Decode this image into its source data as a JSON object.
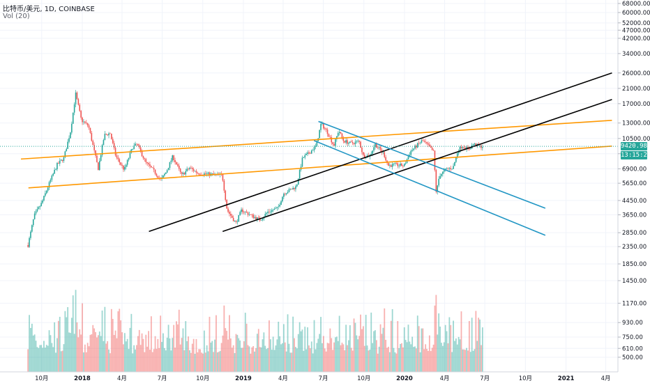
{
  "header": {
    "symbol": "比特币/美元",
    "interval": "1D",
    "exchange": "COINBASE",
    "title_text": "比特币/美元, 1D, COINBASE",
    "volume_indicator": "Vol (20)"
  },
  "price_tags": {
    "last_price": "9420.98",
    "countdown": "13:15:26"
  },
  "colors": {
    "bull": "#26a69a",
    "bear": "#ef5350",
    "price_line": "#26a69a",
    "trend_orange": "#ff9800",
    "trend_black": "#000000",
    "trend_blue": "#2196c4",
    "grid": "#f0f3fa",
    "axis_text": "#131722"
  },
  "chart_data": {
    "type": "candlestick",
    "scale": "log",
    "y_axis_ticks": [
      "68000.00",
      "60000.00",
      "52000.00",
      "47000.00",
      "42000.00",
      "34000.00",
      "26000.00",
      "21000.00",
      "17000.00",
      "13000.00",
      "10500.00",
      "8500.00",
      "6900.00",
      "5650.00",
      "4450.00",
      "3650.00",
      "2850.00",
      "2350.00",
      "1850.00"
    ],
    "volume_axis_ticks": [
      "1450.00",
      "1170.00",
      "930.00",
      "750.00",
      "610.00",
      "500.00"
    ],
    "x_axis_ticks": [
      "10月",
      "2018",
      "4月",
      "7月",
      "10月",
      "2019",
      "4月",
      "7月",
      "10月",
      "2020",
      "4月",
      "7月",
      "10月",
      "2021",
      "4月"
    ],
    "grid": true,
    "last_price": 9420.98,
    "price_path": [
      [
        "2017-08-31",
        2400
      ],
      [
        "2017-09-14",
        3600
      ],
      [
        "2017-10-01",
        4300
      ],
      [
        "2017-10-20",
        5800
      ],
      [
        "2017-11-05",
        7300
      ],
      [
        "2017-11-20",
        8000
      ],
      [
        "2017-12-05",
        11500
      ],
      [
        "2017-12-17",
        19500
      ],
      [
        "2017-12-30",
        13500
      ],
      [
        "2018-01-15",
        12500
      ],
      [
        "2018-02-06",
        6900
      ],
      [
        "2018-02-20",
        11000
      ],
      [
        "2018-03-05",
        11300
      ],
      [
        "2018-03-18",
        8200
      ],
      [
        "2018-04-06",
        6800
      ],
      [
        "2018-04-25",
        9300
      ],
      [
        "2018-05-05",
        9700
      ],
      [
        "2018-05-25",
        7500
      ],
      [
        "2018-06-10",
        6800
      ],
      [
        "2018-06-28",
        5900
      ],
      [
        "2018-07-10",
        6600
      ],
      [
        "2018-07-25",
        8200
      ],
      [
        "2018-08-14",
        6300
      ],
      [
        "2018-09-01",
        7000
      ],
      [
        "2018-09-20",
        6500
      ],
      [
        "2018-10-15",
        6400
      ],
      [
        "2018-11-14",
        6300
      ],
      [
        "2018-11-25",
        3900
      ],
      [
        "2018-12-15",
        3250
      ],
      [
        "2018-12-28",
        3900
      ],
      [
        "2019-01-20",
        3600
      ],
      [
        "2019-02-08",
        3400
      ],
      [
        "2019-02-25",
        3800
      ],
      [
        "2019-03-20",
        4000
      ],
      [
        "2019-04-02",
        4900
      ],
      [
        "2019-05-01",
        5400
      ],
      [
        "2019-05-15",
        8000
      ],
      [
        "2019-05-30",
        8600
      ],
      [
        "2019-06-15",
        9500
      ],
      [
        "2019-06-26",
        12900
      ],
      [
        "2019-07-10",
        11500
      ],
      [
        "2019-07-25",
        9500
      ],
      [
        "2019-08-05",
        11800
      ],
      [
        "2019-08-15",
        10200
      ],
      [
        "2019-09-01",
        9800
      ],
      [
        "2019-09-20",
        10100
      ],
      [
        "2019-09-30",
        8200
      ],
      [
        "2019-10-15",
        8300
      ],
      [
        "2019-10-26",
        9700
      ],
      [
        "2019-11-15",
        8500
      ],
      [
        "2019-11-25",
        7200
      ],
      [
        "2019-12-10",
        7300
      ],
      [
        "2019-12-31",
        7200
      ],
      [
        "2020-01-15",
        8800
      ],
      [
        "2020-02-10",
        10200
      ],
      [
        "2020-02-20",
        9700
      ],
      [
        "2020-03-07",
        8700
      ],
      [
        "2020-03-13",
        4900
      ],
      [
        "2020-03-20",
        6300
      ],
      [
        "2020-04-06",
        6900
      ],
      [
        "2020-04-20",
        7000
      ],
      [
        "2020-04-30",
        8700
      ],
      [
        "2020-05-10",
        9500
      ],
      [
        "2020-05-25",
        9000
      ],
      [
        "2020-06-05",
        9700
      ],
      [
        "2020-06-20",
        9400
      ],
      [
        "2020-06-26",
        9420.98
      ]
    ],
    "trendlines": [
      {
        "color": "orange",
        "from": [
          "2017-08-15",
          7900
        ],
        "to": [
          "2021-04-15",
          13500
        ]
      },
      {
        "color": "orange",
        "from": [
          "2017-09-01",
          5300
        ],
        "to": [
          "2021-04-15",
          9450
        ]
      },
      {
        "color": "black",
        "from": [
          "2018-06-01",
          2900
        ],
        "to": [
          "2021-04-15",
          26000
        ]
      },
      {
        "color": "black",
        "from": [
          "2018-11-15",
          2900
        ],
        "to": [
          "2021-04-15",
          18000
        ]
      },
      {
        "color": "blue",
        "from": [
          "2019-06-20",
          13300
        ],
        "to": [
          "2020-11-15",
          4000
        ]
      },
      {
        "color": "blue",
        "from": [
          "2019-06-10",
          10200
        ],
        "to": [
          "2020-11-15",
          2750
        ]
      }
    ]
  }
}
